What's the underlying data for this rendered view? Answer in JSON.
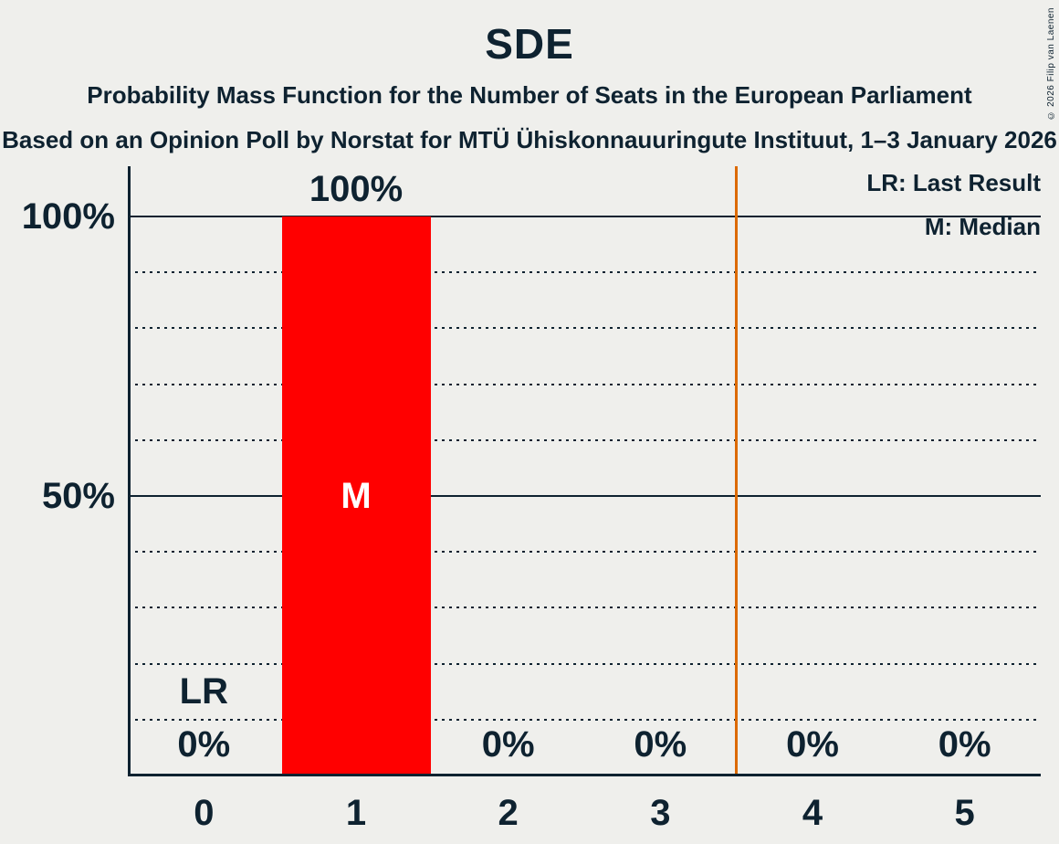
{
  "title": "SDE",
  "subtitle": "Probability Mass Function for the Number of Seats in the European Parliament",
  "source_line": "Based on an Opinion Poll by Norstat for MTÜ Ühiskonnauuringute Instituut, 1–3 January 2026",
  "copyright": "© 2026 Filip van Laenen",
  "legend": {
    "last_result": "LR: Last Result",
    "median": "M: Median"
  },
  "colors": {
    "background": "#EFEFEC",
    "text": "#0E2230",
    "bar": "#FF0000",
    "majority_line": "#DC6A00",
    "median_marker_text": "#FFFFFF"
  },
  "chart_data": {
    "type": "bar",
    "title": "SDE",
    "categories": [
      "0",
      "1",
      "2",
      "3",
      "4",
      "5"
    ],
    "values": [
      0,
      100,
      0,
      0,
      0,
      0
    ],
    "value_labels": [
      "0%",
      "100%",
      "0%",
      "0%",
      "0%",
      "0%"
    ],
    "ylim": [
      0,
      100
    ],
    "y_axis_ticks": [
      {
        "value": 100,
        "label": "100%"
      },
      {
        "value": 50,
        "label": "50%"
      }
    ],
    "gridlines": {
      "dotted_at_pct": [
        10,
        20,
        30,
        40,
        60,
        70,
        80,
        90
      ],
      "solid_at_pct": [
        50,
        100
      ]
    },
    "legend_position": "top-right",
    "annotations": {
      "median_marker": "M",
      "median_category": "1",
      "last_result_marker": "LR",
      "last_result_category": "0",
      "majority_threshold_x": 3.5
    }
  }
}
